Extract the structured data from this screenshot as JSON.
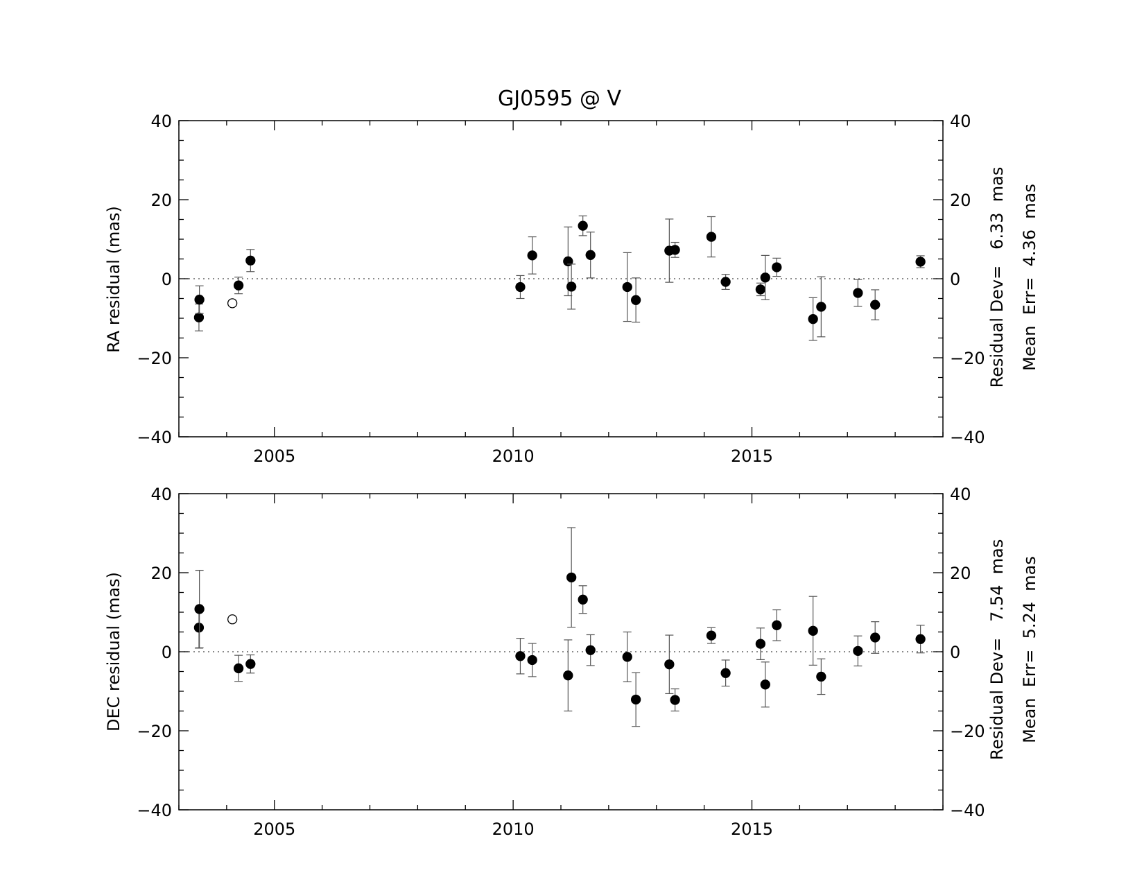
{
  "title": "GJ0595 @ V",
  "colors": {
    "axis": "#000000",
    "errorbar": "#555555",
    "point": "#000000"
  },
  "chart_data": [
    {
      "type": "scatter",
      "ylabel": "RA residual (mas)",
      "xlim": [
        2003.0,
        2019.0
      ],
      "ylim": [
        -40,
        40
      ],
      "x_ticks": [
        2005,
        2010,
        2015
      ],
      "y_ticks": [
        -40,
        -20,
        0,
        20,
        40
      ],
      "zero_line": true,
      "stats": [
        "Residual Dev=   6.33  mas",
        "Mean  Err=  4.36  mas"
      ],
      "points": [
        {
          "x": 2003.42,
          "y": -9.8,
          "err": 3.4,
          "filled": true
        },
        {
          "x": 2003.43,
          "y": -5.3,
          "err": 3.5,
          "filled": true
        },
        {
          "x": 2004.12,
          "y": -6.2,
          "err": 0,
          "filled": false
        },
        {
          "x": 2004.25,
          "y": -1.7,
          "err": 2.1,
          "filled": true
        },
        {
          "x": 2004.5,
          "y": 4.6,
          "err": 2.8,
          "filled": true
        },
        {
          "x": 2010.15,
          "y": -2.1,
          "err": 2.9,
          "filled": true
        },
        {
          "x": 2010.4,
          "y": 5.9,
          "err": 4.7,
          "filled": true
        },
        {
          "x": 2011.15,
          "y": 4.4,
          "err": 8.7,
          "filled": true
        },
        {
          "x": 2011.22,
          "y": -2.0,
          "err": 5.7,
          "filled": true
        },
        {
          "x": 2011.46,
          "y": 13.4,
          "err": 2.5,
          "filled": true
        },
        {
          "x": 2011.62,
          "y": 6.0,
          "err": 5.8,
          "filled": true
        },
        {
          "x": 2012.39,
          "y": -2.1,
          "err": 8.7,
          "filled": true
        },
        {
          "x": 2012.57,
          "y": -5.4,
          "err": 5.6,
          "filled": true
        },
        {
          "x": 2013.27,
          "y": 7.1,
          "err": 8.0,
          "filled": true
        },
        {
          "x": 2013.39,
          "y": 7.3,
          "err": 1.9,
          "filled": true
        },
        {
          "x": 2014.15,
          "y": 10.6,
          "err": 5.1,
          "filled": true
        },
        {
          "x": 2014.45,
          "y": -0.8,
          "err": 1.9,
          "filled": true
        },
        {
          "x": 2015.18,
          "y": -2.7,
          "err": 1.6,
          "filled": true
        },
        {
          "x": 2015.28,
          "y": 0.3,
          "err": 5.6,
          "filled": true
        },
        {
          "x": 2015.52,
          "y": 2.9,
          "err": 2.3,
          "filled": true
        },
        {
          "x": 2016.28,
          "y": -10.2,
          "err": 5.4,
          "filled": true
        },
        {
          "x": 2016.45,
          "y": -7.1,
          "err": 7.6,
          "filled": true
        },
        {
          "x": 2017.22,
          "y": -3.6,
          "err": 3.4,
          "filled": true
        },
        {
          "x": 2017.58,
          "y": -6.6,
          "err": 3.8,
          "filled": true
        },
        {
          "x": 2018.53,
          "y": 4.3,
          "err": 1.5,
          "filled": true
        }
      ]
    },
    {
      "type": "scatter",
      "ylabel": "DEC residual (mas)",
      "xlim": [
        2003.0,
        2019.0
      ],
      "ylim": [
        -40,
        40
      ],
      "x_ticks": [
        2005,
        2010,
        2015
      ],
      "y_ticks": [
        -40,
        -20,
        0,
        20,
        40
      ],
      "zero_line": true,
      "stats": [
        "Residual Dev=   7.54  mas",
        "Mean  Err=  5.24  mas"
      ],
      "points": [
        {
          "x": 2003.42,
          "y": 6.1,
          "err": 5.2,
          "filled": true
        },
        {
          "x": 2003.43,
          "y": 10.8,
          "err": 9.8,
          "filled": true
        },
        {
          "x": 2004.12,
          "y": 8.2,
          "err": 0,
          "filled": false
        },
        {
          "x": 2004.25,
          "y": -4.2,
          "err": 3.3,
          "filled": true
        },
        {
          "x": 2004.5,
          "y": -3.1,
          "err": 2.3,
          "filled": true
        },
        {
          "x": 2010.15,
          "y": -1.1,
          "err": 4.5,
          "filled": true
        },
        {
          "x": 2010.4,
          "y": -2.1,
          "err": 4.2,
          "filled": true
        },
        {
          "x": 2011.15,
          "y": -6.0,
          "err": 9.0,
          "filled": true
        },
        {
          "x": 2011.22,
          "y": 18.8,
          "err": 12.6,
          "filled": true
        },
        {
          "x": 2011.46,
          "y": 13.2,
          "err": 3.5,
          "filled": true
        },
        {
          "x": 2011.62,
          "y": 0.4,
          "err": 3.9,
          "filled": true
        },
        {
          "x": 2012.39,
          "y": -1.3,
          "err": 6.3,
          "filled": true
        },
        {
          "x": 2012.57,
          "y": -12.1,
          "err": 6.8,
          "filled": true
        },
        {
          "x": 2013.27,
          "y": -3.2,
          "err": 7.4,
          "filled": true
        },
        {
          "x": 2013.39,
          "y": -12.2,
          "err": 2.8,
          "filled": true
        },
        {
          "x": 2014.15,
          "y": 4.1,
          "err": 2.0,
          "filled": true
        },
        {
          "x": 2014.45,
          "y": -5.4,
          "err": 3.3,
          "filled": true
        },
        {
          "x": 2015.18,
          "y": 2.0,
          "err": 4.0,
          "filled": true
        },
        {
          "x": 2015.28,
          "y": -8.3,
          "err": 5.7,
          "filled": true
        },
        {
          "x": 2015.52,
          "y": 6.7,
          "err": 3.9,
          "filled": true
        },
        {
          "x": 2016.28,
          "y": 5.3,
          "err": 8.7,
          "filled": true
        },
        {
          "x": 2016.45,
          "y": -6.3,
          "err": 4.5,
          "filled": true
        },
        {
          "x": 2017.22,
          "y": 0.2,
          "err": 3.8,
          "filled": true
        },
        {
          "x": 2017.58,
          "y": 3.6,
          "err": 4.0,
          "filled": true
        },
        {
          "x": 2018.53,
          "y": 3.2,
          "err": 3.5,
          "filled": true
        }
      ]
    }
  ]
}
